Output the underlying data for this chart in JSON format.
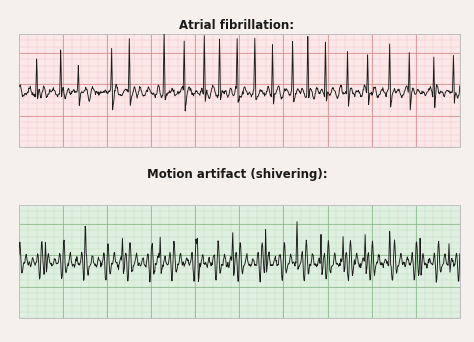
{
  "title1": "Atrial fibrillation:",
  "title2": "Motion artifact (shivering):",
  "bg_color": "#f5f0eb",
  "ecg1_bg": "#fce8e8",
  "ecg1_grid_minor": "#f0c0c0",
  "ecg1_grid_major": "#d88888",
  "ecg2_bg": "#e0f0e0",
  "ecg2_grid_minor": "#b8d8b8",
  "ecg2_grid_major": "#88b888",
  "ecg_line_color": "#1a1a1a",
  "title_fontsize": 8.5,
  "title_fontweight": "bold",
  "border_color": "#c0c0c0"
}
